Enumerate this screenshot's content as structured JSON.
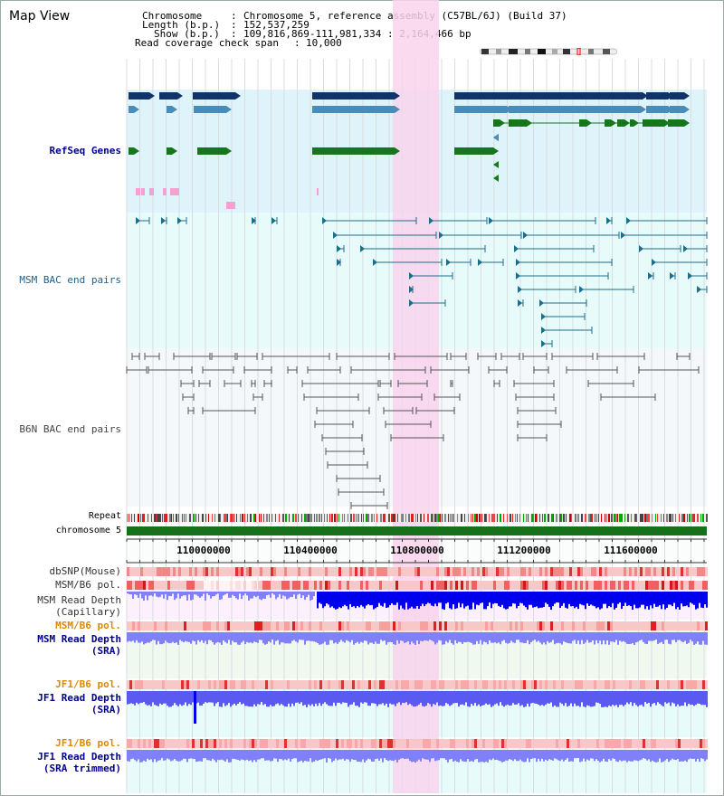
{
  "page": {
    "title": "Map View"
  },
  "header": {
    "chromosome_label": "Chromosome",
    "chromosome_value": "Chromosome 5, reference assembly (C57BL/6J) (Build 37)",
    "length_label": "Length (b.p.)",
    "length_value": "152,537,259",
    "show_label": "Show (b.p.)",
    "show_value": "109,816,869-111,981,334 : 2,164,466 bp",
    "coverage_label": "Read coverage check span",
    "coverage_value": "10,000"
  },
  "tracks": {
    "refseq": "RefSeq Genes",
    "msm_bac": "MSM BAC end pairs",
    "b6n_bac": "B6N BAC end pairs",
    "repeat": "Repeat",
    "chromosome": "chromosome 5",
    "dbsnp": "dbSNP(Mouse)",
    "msm_b6_pol_1": "MSM/B6 pol.",
    "msm_depth_cap_1": "MSM Read Depth",
    "msm_depth_cap_2": "(Capillary)",
    "msm_b6_pol_2": "MSM/B6 pol.",
    "msm_depth_sra_1": "MSM Read Depth",
    "msm_depth_sra_2": "(SRA)",
    "jf1_b6_pol_1": "JF1/B6 pol.",
    "jf1_depth_sra_1": "JF1 Read Depth",
    "jf1_depth_sra_2": "(SRA)",
    "jf1_b6_pol_2": "JF1/B6 pol.",
    "jf1_depth_trim_1": "JF1 Read Depth",
    "jf1_depth_trim_2": "(SRA trimmed)"
  },
  "axis": {
    "ticks": [
      "110000000",
      "110400000",
      "110800000",
      "111200000",
      "111600000"
    ]
  },
  "colors": {
    "refseq_bg": "#dff3fb",
    "msm_bg": "#e8fbfb",
    "b6n_bg": "#f4f8fa",
    "highlight": "#f8d4ec",
    "gene_dark": "#10346a",
    "gene_mid": "#4a8cb8",
    "gene_green": "#16761a",
    "msm_line": "#1c6e8c",
    "b6n_line": "#555555",
    "chromosome": "#17701a",
    "depth_blue": "#0000ee",
    "depth_light": "#8080f8",
    "pol_red": "#f08080",
    "label_navy": "#00008b",
    "label_orange": "#dd8800"
  }
}
